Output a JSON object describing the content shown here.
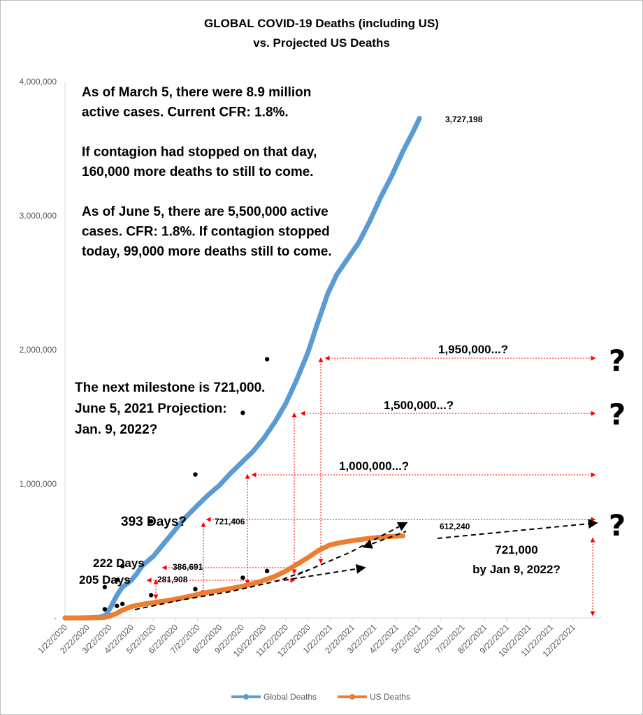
{
  "chart_data": {
    "type": "line",
    "title_lines": [
      "GLOBAL COVID-19 Deaths (including US)",
      "vs. Projected US Deaths"
    ],
    "ylim": [
      0,
      4000000
    ],
    "y_ticks": [
      {
        "value": 0,
        "label": "-"
      },
      {
        "value": 1000000,
        "label": "1,000,000"
      },
      {
        "value": 2000000,
        "label": "2,000,000"
      },
      {
        "value": 3000000,
        "label": "3,000,000"
      },
      {
        "value": 4000000,
        "label": "4,000,000"
      }
    ],
    "x_ticks": [
      "1/22/2020",
      "2/22/2020",
      "3/22/2020",
      "4/22/2020",
      "5/22/2020",
      "6/22/2020",
      "7/22/2020",
      "8/22/2020",
      "9/22/2020",
      "10/22/2020",
      "11/22/2020",
      "12/22/2020",
      "1/22/2021",
      "2/22/2021",
      "3/22/2021",
      "4/22/2021",
      "5/22/2021",
      "6/22/2021",
      "7/22/2021",
      "8/22/2021",
      "9/22/2021",
      "10/22/2021",
      "11/22/2021",
      "12/22/2021"
    ],
    "grid": false,
    "legend_position": "bottom",
    "series": [
      {
        "name": "Global Deaths",
        "color": "#5b9bd5",
        "points": [
          [
            0,
            0
          ],
          [
            0.5,
            0
          ],
          [
            1,
            1000
          ],
          [
            1.5,
            3500
          ],
          [
            1.85,
            20000
          ],
          [
            2.1,
            90000
          ],
          [
            2.35,
            170000
          ],
          [
            2.6,
            230000
          ],
          [
            3,
            280000
          ],
          [
            3.25,
            330000
          ],
          [
            3.5,
            390000
          ],
          [
            4,
            460000
          ],
          [
            4.5,
            560000
          ],
          [
            5,
            660000
          ],
          [
            5.4,
            740000
          ],
          [
            6,
            840000
          ],
          [
            6.5,
            920000
          ],
          [
            7,
            990000
          ],
          [
            7.5,
            1080000
          ],
          [
            8,
            1160000
          ],
          [
            8.5,
            1240000
          ],
          [
            9,
            1340000
          ],
          [
            9.5,
            1460000
          ],
          [
            10,
            1600000
          ],
          [
            10.5,
            1780000
          ],
          [
            11,
            1980000
          ],
          [
            11.4,
            2180000
          ],
          [
            11.9,
            2420000
          ],
          [
            12.3,
            2560000
          ],
          [
            12.8,
            2680000
          ],
          [
            13.3,
            2800000
          ],
          [
            13.8,
            2960000
          ],
          [
            14.3,
            3140000
          ],
          [
            14.8,
            3300000
          ],
          [
            15.3,
            3480000
          ],
          [
            15.8,
            3640000
          ],
          [
            16.05,
            3727198
          ]
        ]
      },
      {
        "name": "US Deaths",
        "color": "#ed7d31",
        "points": [
          [
            0,
            0
          ],
          [
            1,
            0
          ],
          [
            1.8,
            3000
          ],
          [
            2.3,
            30000
          ],
          [
            2.5,
            50000
          ],
          [
            3,
            85000
          ],
          [
            3.5,
            102000
          ],
          [
            4,
            114000
          ],
          [
            4.5,
            126000
          ],
          [
            5,
            140000
          ],
          [
            5.5,
            157000
          ],
          [
            6,
            175000
          ],
          [
            6.5,
            192000
          ],
          [
            7,
            205000
          ],
          [
            7.5,
            220000
          ],
          [
            8,
            235000
          ],
          [
            8.5,
            255000
          ],
          [
            9,
            280000
          ],
          [
            9.5,
            310000
          ],
          [
            10,
            350000
          ],
          [
            10.5,
            400000
          ],
          [
            11,
            450000
          ],
          [
            11.5,
            505000
          ],
          [
            12,
            545000
          ],
          [
            12.5,
            563000
          ],
          [
            13,
            576000
          ],
          [
            13.5,
            588000
          ],
          [
            14,
            598000
          ],
          [
            14.5,
            605000
          ],
          [
            15,
            610000
          ],
          [
            15.3,
            612240
          ]
        ]
      }
    ],
    "markers": [
      {
        "series": "global",
        "x": 1.8,
        "y": 230000
      },
      {
        "series": "global",
        "x": 2.35,
        "y": 281908
      },
      {
        "series": "global",
        "x": 2.6,
        "y": 386691
      },
      {
        "series": "global",
        "x": 3.9,
        "y": 721406
      },
      {
        "series": "global",
        "x": 5.9,
        "y": 1070000
      },
      {
        "series": "global",
        "x": 8.05,
        "y": 1530000
      },
      {
        "series": "global",
        "x": 9.15,
        "y": 1930000
      },
      {
        "series": "us",
        "x": 1.8,
        "y": 65000
      },
      {
        "series": "us",
        "x": 2.35,
        "y": 90000
      },
      {
        "series": "us",
        "x": 2.6,
        "y": 105000
      },
      {
        "series": "us",
        "x": 3.9,
        "y": 170000
      },
      {
        "series": "us",
        "x": 5.9,
        "y": 215000
      },
      {
        "series": "us",
        "x": 8.05,
        "y": 300000
      },
      {
        "series": "us",
        "x": 9.15,
        "y": 350000
      }
    ],
    "data_labels": {
      "global_last": "3,727,198",
      "us_last": "612,240",
      "global_721406": "721,406",
      "global_386691": "386,691",
      "global_281908": "281,908"
    },
    "annotations": {
      "note1": [
        "As of March 5, there were 8.9 million",
        "active cases. Current CFR: 1.8%.",
        "",
        "If contagion had stopped on that day,",
        "160,000 more deaths to still to come.",
        "",
        "As of June 5, there are 5,500,000 active",
        "cases. CFR: 1.8%. If contagion stopped",
        "today, 99,000 more deaths still to come."
      ],
      "milestone": [
        "The next milestone is 721,000.",
        "June 5, 2021 Projection:",
        "Jan. 9, 2022?"
      ],
      "days_393": "393 Days?",
      "days_222": "222 Days",
      "days_205": "205 Days",
      "proj_1950": "1,950,000...?",
      "proj_1500": "1,500,000...?",
      "proj_1000": "1,000,000...?",
      "us_721": [
        "721,000",
        "by Jan 9, 2022?"
      ],
      "qmark": "?"
    }
  }
}
